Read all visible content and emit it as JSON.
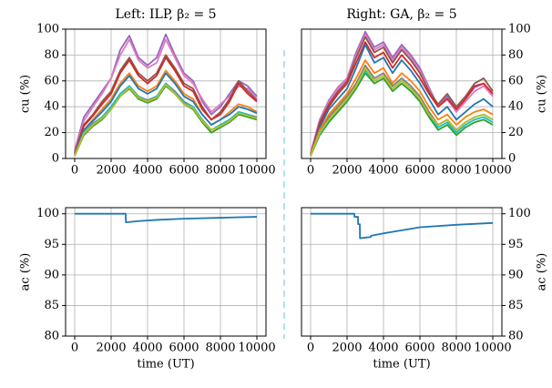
{
  "chart_data": [
    {
      "type": "line",
      "title": "Left: ILP, β₂ = 5",
      "ylabel": "cu (%)",
      "yaxis_side": "left",
      "grid": true,
      "xlim": [
        -500,
        10500
      ],
      "xticks": [
        0,
        2000,
        4000,
        6000,
        8000,
        10000
      ],
      "ylim": [
        0,
        100
      ],
      "yticks": [
        0,
        20,
        40,
        60,
        80,
        100
      ],
      "x": [
        0,
        500,
        1000,
        1500,
        2000,
        2500,
        3000,
        3500,
        4000,
        4500,
        5000,
        5500,
        6000,
        6500,
        7000,
        7500,
        8000,
        8500,
        9000,
        9500,
        10000
      ],
      "series": [
        {
          "color": "#9467bd",
          "values": [
            6,
            32,
            42,
            52,
            62,
            84,
            95,
            78,
            72,
            78,
            96,
            80,
            66,
            60,
            44,
            34,
            40,
            50,
            60,
            56,
            48
          ]
        },
        {
          "color": "#e377c2",
          "values": [
            5,
            29,
            40,
            50,
            62,
            80,
            92,
            76,
            70,
            74,
            92,
            78,
            64,
            58,
            46,
            36,
            42,
            48,
            56,
            54,
            46
          ]
        },
        {
          "color": "#8c564b",
          "values": [
            4,
            26,
            34,
            44,
            52,
            68,
            78,
            66,
            60,
            66,
            80,
            70,
            58,
            54,
            40,
            30,
            36,
            46,
            60,
            52,
            45
          ]
        },
        {
          "color": "#d62728",
          "values": [
            4,
            25,
            33,
            42,
            50,
            66,
            76,
            64,
            58,
            64,
            78,
            68,
            56,
            52,
            38,
            30,
            34,
            44,
            58,
            50,
            44
          ]
        },
        {
          "color": "#ff7f0e",
          "values": [
            3,
            22,
            30,
            38,
            46,
            58,
            66,
            56,
            52,
            56,
            68,
            60,
            50,
            46,
            34,
            26,
            30,
            36,
            42,
            40,
            36
          ]
        },
        {
          "color": "#1f77b4",
          "values": [
            3,
            22,
            29,
            36,
            44,
            56,
            64,
            54,
            50,
            54,
            66,
            58,
            48,
            44,
            34,
            26,
            30,
            34,
            40,
            38,
            35
          ]
        },
        {
          "color": "#7f7f7f",
          "values": [
            3,
            20,
            27,
            32,
            40,
            50,
            56,
            48,
            45,
            48,
            58,
            52,
            44,
            40,
            30,
            22,
            26,
            30,
            36,
            34,
            32
          ]
        },
        {
          "color": "#2ca02c",
          "values": [
            2,
            18,
            25,
            30,
            38,
            48,
            54,
            46,
            43,
            46,
            56,
            50,
            42,
            38,
            28,
            20,
            24,
            28,
            34,
            32,
            30
          ]
        },
        {
          "color": "#17becf",
          "values": [
            2,
            20,
            26,
            32,
            40,
            50,
            56,
            48,
            44,
            48,
            58,
            51,
            43,
            40,
            30,
            22,
            26,
            30,
            36,
            34,
            31
          ]
        },
        {
          "color": "#bcbd22",
          "values": [
            2,
            19,
            26,
            31,
            38,
            48,
            55,
            47,
            44,
            47,
            57,
            50,
            42,
            39,
            29,
            22,
            25,
            29,
            35,
            33,
            31
          ]
        }
      ]
    },
    {
      "type": "line",
      "title": "Right: GA, β₂ = 5",
      "ylabel": "cu (%)",
      "yaxis_side": "right",
      "grid": true,
      "xlim": [
        -500,
        10500
      ],
      "xticks": [
        0,
        2000,
        4000,
        6000,
        8000,
        10000
      ],
      "ylim": [
        0,
        100
      ],
      "yticks": [
        0,
        20,
        40,
        60,
        80,
        100
      ],
      "x": [
        0,
        500,
        1000,
        1500,
        2000,
        2500,
        3000,
        3500,
        4000,
        4500,
        5000,
        5500,
        6000,
        6500,
        7000,
        7500,
        8000,
        8500,
        9000,
        9500,
        10000
      ],
      "series": [
        {
          "color": "#9467bd",
          "values": [
            4,
            30,
            45,
            55,
            62,
            82,
            98,
            86,
            90,
            78,
            88,
            80,
            70,
            55,
            40,
            48,
            38,
            46,
            55,
            58,
            50
          ]
        },
        {
          "color": "#e377c2",
          "values": [
            4,
            30,
            44,
            54,
            62,
            80,
            96,
            84,
            88,
            76,
            86,
            78,
            68,
            54,
            40,
            46,
            36,
            44,
            52,
            56,
            48
          ]
        },
        {
          "color": "#8c564b",
          "values": [
            3,
            28,
            42,
            52,
            60,
            78,
            94,
            82,
            86,
            74,
            84,
            76,
            66,
            52,
            42,
            50,
            40,
            48,
            58,
            62,
            52
          ]
        },
        {
          "color": "#d62728",
          "values": [
            3,
            26,
            40,
            50,
            58,
            74,
            90,
            78,
            82,
            70,
            80,
            72,
            62,
            50,
            40,
            46,
            38,
            46,
            56,
            58,
            50
          ]
        },
        {
          "color": "#1f77b4",
          "values": [
            3,
            24,
            38,
            46,
            54,
            70,
            88,
            74,
            78,
            66,
            76,
            68,
            58,
            46,
            34,
            40,
            30,
            36,
            42,
            46,
            40
          ]
        },
        {
          "color": "#ff7f0e",
          "values": [
            3,
            22,
            34,
            42,
            50,
            62,
            76,
            66,
            70,
            58,
            66,
            60,
            52,
            40,
            30,
            34,
            26,
            32,
            36,
            38,
            34
          ]
        },
        {
          "color": "#7f7f7f",
          "values": [
            2,
            20,
            32,
            40,
            48,
            58,
            72,
            62,
            66,
            56,
            62,
            56,
            48,
            36,
            26,
            30,
            22,
            28,
            32,
            34,
            30
          ]
        },
        {
          "color": "#2ca02c",
          "values": [
            2,
            18,
            28,
            36,
            44,
            54,
            66,
            58,
            62,
            52,
            58,
            52,
            44,
            32,
            22,
            26,
            18,
            24,
            28,
            30,
            26
          ]
        },
        {
          "color": "#17becf",
          "values": [
            2,
            19,
            30,
            38,
            46,
            56,
            68,
            60,
            64,
            54,
            60,
            54,
            46,
            34,
            24,
            28,
            20,
            26,
            30,
            32,
            28
          ]
        },
        {
          "color": "#bcbd22",
          "values": [
            2,
            20,
            30,
            38,
            46,
            56,
            70,
            60,
            64,
            54,
            60,
            54,
            46,
            34,
            26,
            30,
            22,
            28,
            32,
            34,
            30
          ]
        }
      ]
    },
    {
      "type": "line",
      "ylabel": "ac (%)",
      "xlabel": "time (UT)",
      "yaxis_side": "left",
      "grid": true,
      "xlim": [
        -500,
        10500
      ],
      "xticks": [
        0,
        2000,
        4000,
        6000,
        8000,
        10000
      ],
      "ylim": [
        80,
        101
      ],
      "yticks": [
        80,
        85,
        90,
        95,
        100
      ],
      "x": [
        0,
        2800,
        2810,
        3500,
        4500,
        6000,
        8000,
        10000
      ],
      "series": [
        {
          "color": "#1f77b4",
          "values": [
            100,
            100,
            98.6,
            98.8,
            99.0,
            99.2,
            99.35,
            99.5
          ]
        }
      ]
    },
    {
      "type": "line",
      "ylabel": "ac (%)",
      "xlabel": "time (UT)",
      "yaxis_side": "right",
      "grid": true,
      "xlim": [
        -500,
        10500
      ],
      "xticks": [
        0,
        2000,
        4000,
        6000,
        8000,
        10000
      ],
      "ylim": [
        80,
        101
      ],
      "yticks": [
        80,
        85,
        90,
        95,
        100
      ],
      "x": [
        0,
        2400,
        2410,
        2600,
        2610,
        2700,
        2710,
        3300,
        3310,
        4000,
        5000,
        6000,
        8000,
        10000
      ],
      "series": [
        {
          "color": "#1f77b4",
          "values": [
            100,
            100,
            99.5,
            99.5,
            98.3,
            98.3,
            96.0,
            96.2,
            96.4,
            96.8,
            97.3,
            97.8,
            98.2,
            98.5
          ]
        }
      ]
    }
  ]
}
